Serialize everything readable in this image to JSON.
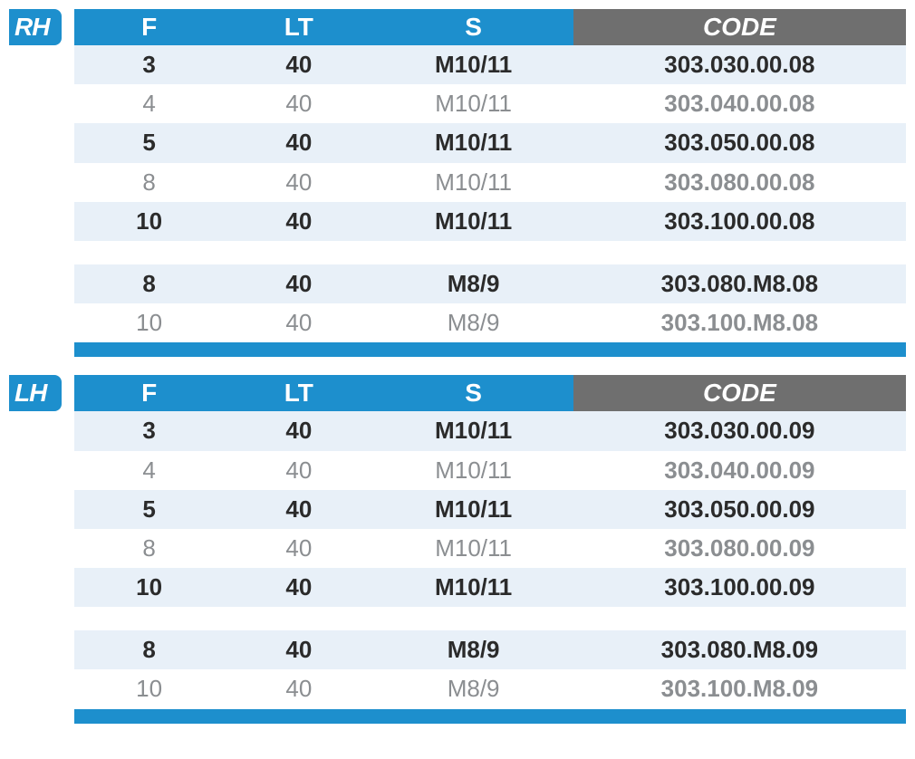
{
  "colors": {
    "header_blue": "#1d8fcd",
    "header_gray": "#6f6f6f",
    "row_light": "#e8f0f8",
    "row_white": "#ffffff",
    "text_bold": "#2b2b2b",
    "text_gray": "#8b8e91"
  },
  "columns": [
    "F",
    "LT",
    "S",
    "CODE"
  ],
  "sections": [
    {
      "badge": "RH",
      "rows": [
        {
          "f": "3",
          "lt": "40",
          "s": "M10/11",
          "code": "303.030.00.08",
          "emph": true,
          "bg": "light"
        },
        {
          "f": "4",
          "lt": "40",
          "s": "M10/11",
          "code": "303.040.00.08",
          "emph": false,
          "bg": "white"
        },
        {
          "f": "5",
          "lt": "40",
          "s": "M10/11",
          "code": "303.050.00.08",
          "emph": true,
          "bg": "light"
        },
        {
          "f": "8",
          "lt": "40",
          "s": "M10/11",
          "code": "303.080.00.08",
          "emph": false,
          "bg": "white"
        },
        {
          "f": "10",
          "lt": "40",
          "s": "M10/11",
          "code": "303.100.00.08",
          "emph": true,
          "bg": "light"
        },
        {
          "spacer": true
        },
        {
          "f": "8",
          "lt": "40",
          "s": "M8/9",
          "code": "303.080.M8.08",
          "emph": true,
          "bg": "light"
        },
        {
          "f": "10",
          "lt": "40",
          "s": "M8/9",
          "code": "303.100.M8.08",
          "emph": false,
          "bg": "white"
        }
      ]
    },
    {
      "badge": "LH",
      "rows": [
        {
          "f": "3",
          "lt": "40",
          "s": "M10/11",
          "code": "303.030.00.09",
          "emph": true,
          "bg": "light"
        },
        {
          "f": "4",
          "lt": "40",
          "s": "M10/11",
          "code": "303.040.00.09",
          "emph": false,
          "bg": "white"
        },
        {
          "f": "5",
          "lt": "40",
          "s": "M10/11",
          "code": "303.050.00.09",
          "emph": true,
          "bg": "light"
        },
        {
          "f": "8",
          "lt": "40",
          "s": "M10/11",
          "code": "303.080.00.09",
          "emph": false,
          "bg": "white"
        },
        {
          "f": "10",
          "lt": "40",
          "s": "M10/11",
          "code": "303.100.00.09",
          "emph": true,
          "bg": "light"
        },
        {
          "spacer": true
        },
        {
          "f": "8",
          "lt": "40",
          "s": "M8/9",
          "code": "303.080.M8.09",
          "emph": true,
          "bg": "light"
        },
        {
          "f": "10",
          "lt": "40",
          "s": "M8/9",
          "code": "303.100.M8.09",
          "emph": false,
          "bg": "white"
        }
      ]
    }
  ]
}
